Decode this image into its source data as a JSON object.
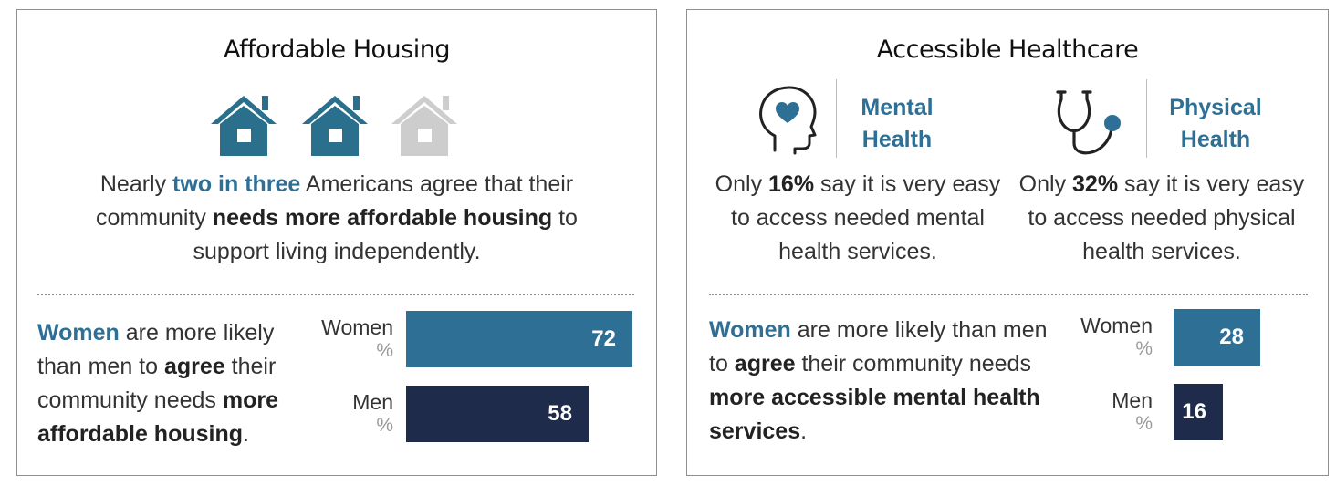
{
  "housing": {
    "title": "Affordable Housing",
    "lead": {
      "p1": "Nearly ",
      "p2": "two in three",
      "p3": " Americans agree that their community ",
      "p4": "needs more affordable housing",
      "p5": " to support living independently."
    },
    "finding": {
      "p1": "Women",
      "p2": " are more likely than men to ",
      "p3": "agree",
      "p4": " their community needs ",
      "p5": "more affordable housing",
      "p6": "."
    }
  },
  "healthcare": {
    "title": "Accessible Healthcare",
    "mental": {
      "label_line1": "Mental",
      "label_line2": "Health",
      "icon": "head-heart-icon",
      "text": {
        "p1": "Only ",
        "p2": "16%",
        "p3": " say it is very easy to access needed mental health services."
      }
    },
    "physical": {
      "label_line1": "Physical",
      "label_line2": "Health",
      "icon": "stethoscope-icon",
      "text": {
        "p1": "Only ",
        "p2": "32%",
        "p3": " say it is very easy to access needed physical health services."
      }
    },
    "finding": {
      "p1": "Women",
      "p2": " are more likely than men to ",
      "p3": "agree",
      "p4": " their community needs ",
      "p5": "more accessible mental health services",
      "p6": "."
    }
  },
  "colors": {
    "women_bar": "#2e6f96",
    "men_bar": "#1e2b4a",
    "house_filled": "#2a6f8c",
    "house_empty": "#cdcdcd",
    "accent_text": "#2e6f96"
  },
  "houses_indicator": {
    "filled": 2,
    "total": 3
  },
  "chart_data": [
    {
      "type": "bar",
      "orientation": "horizontal",
      "categories": [
        "Women",
        "Men"
      ],
      "unit_label": "%",
      "values": [
        72,
        58
      ],
      "xlim": [
        0,
        72
      ]
    },
    {
      "type": "bar",
      "orientation": "horizontal",
      "categories": [
        "Women",
        "Men"
      ],
      "unit_label": "%",
      "values": [
        28,
        16
      ],
      "xlim": [
        0,
        28
      ]
    }
  ]
}
